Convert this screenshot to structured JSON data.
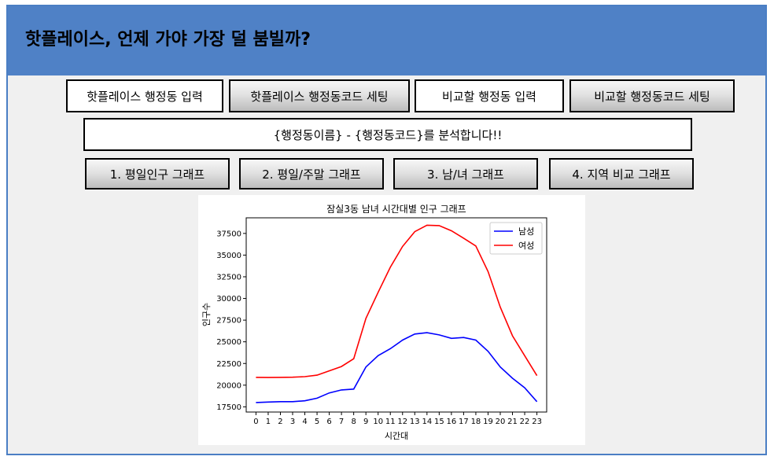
{
  "app": {
    "title": "핫플레이스, 언제 가야 가장 덜 붐빌까?"
  },
  "toolbar": {
    "hotplace_input_label": "핫플레이스 행정동 입력",
    "hotplace_code_label": "핫플레이스 행정동코드 세팅",
    "compare_input_label": "비교할 행정동 입력",
    "compare_code_label": "비교할 행정동코드 세팅"
  },
  "status": {
    "message": "{행정동이름} - {행정동코드}를 분석합니다!!"
  },
  "graph_buttons": {
    "weekday": "1. 평일인구 그래프",
    "weekday_weekend": "2. 평일/주말 그래프",
    "gender": "3. 남/녀 그래프",
    "region_compare": "4. 지역 비교 그래프"
  },
  "colors": {
    "titlebar": "#4f81c6",
    "male": "#0000ff",
    "female": "#ff0000"
  },
  "chart_data": {
    "type": "line",
    "title": "잠실3동 남녀 시간대별 인구 그래프",
    "xlabel": "시간대",
    "ylabel": "인구수",
    "x": [
      0,
      1,
      2,
      3,
      4,
      5,
      6,
      7,
      8,
      9,
      10,
      11,
      12,
      13,
      14,
      15,
      16,
      17,
      18,
      19,
      20,
      21,
      22,
      23
    ],
    "x_tick_labels": [
      "0",
      "1",
      "2",
      "3",
      "4",
      "5",
      "6",
      "7",
      "8",
      "9",
      "10",
      "11",
      "12",
      "13",
      "14",
      "15",
      "16",
      "17",
      "18",
      "19",
      "20",
      "21",
      "22",
      "23"
    ],
    "xlim": [
      -0.8,
      23.8
    ],
    "ylim": [
      16900,
      39300
    ],
    "y_ticks": [
      17500,
      20000,
      22500,
      25000,
      27500,
      30000,
      32500,
      35000,
      37500
    ],
    "y_tick_labels": [
      "17500",
      "20000",
      "22500",
      "25000",
      "27500",
      "30000",
      "32500",
      "35000",
      "37500"
    ],
    "legend_position": "top-right",
    "series": [
      {
        "name": "남성",
        "color": "#0000ff",
        "values": [
          18000,
          18050,
          18100,
          18100,
          18200,
          18500,
          19100,
          19450,
          19550,
          22100,
          23400,
          24200,
          25200,
          25900,
          26050,
          25800,
          25400,
          25500,
          25200,
          23900,
          22100,
          20800,
          19700,
          18100
        ]
      },
      {
        "name": "여성",
        "color": "#ff0000",
        "values": [
          20900,
          20880,
          20900,
          20920,
          20980,
          21150,
          21650,
          22150,
          23050,
          27700,
          30700,
          33600,
          36000,
          37700,
          38450,
          38400,
          37800,
          36950,
          36050,
          33100,
          29000,
          25700,
          23400,
          21100
        ]
      }
    ]
  }
}
